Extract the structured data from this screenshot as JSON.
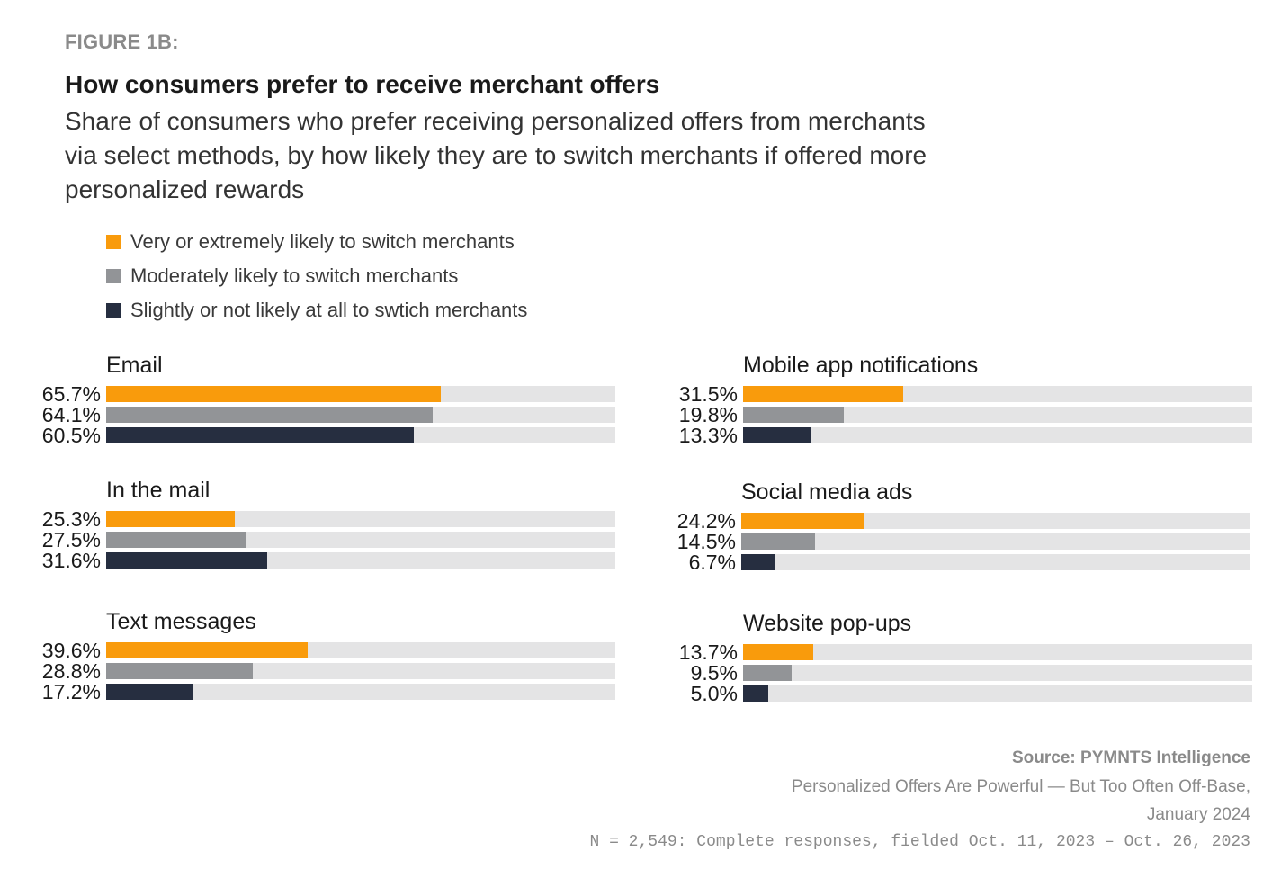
{
  "header": {
    "figure_label": "FIGURE 1B:",
    "title": "How consumers prefer to receive merchant offers",
    "subtitle": "Share of consumers who prefer receiving personalized offers from merchants via select methods, by how likely they are to switch merchants if offered more personalized rewards"
  },
  "legend": {
    "items": [
      {
        "label": "Very or extremely likely to switch merchants",
        "color": "#f99b0c"
      },
      {
        "label": "Moderately likely to switch merchants",
        "color": "#929497"
      },
      {
        "label": "Slightly or not likely at all to swtich merchants",
        "color": "#262e40"
      }
    ]
  },
  "chart_data": {
    "type": "bar",
    "series": [
      {
        "name": "Very or extremely likely to switch merchants",
        "color": "#f99b0c"
      },
      {
        "name": "Moderately likely to switch merchants",
        "color": "#929497"
      },
      {
        "name": "Slightly or not likely at all to swtich merchants",
        "color": "#262e40"
      }
    ],
    "xlim": [
      0,
      100
    ],
    "categories": [
      {
        "name": "Email",
        "values": [
          65.7,
          64.1,
          60.5
        ],
        "labels": [
          "65.7%",
          "64.1%",
          "60.5%"
        ]
      },
      {
        "name": "In the mail",
        "values": [
          25.3,
          27.5,
          31.6
        ],
        "labels": [
          "25.3%",
          "27.5%",
          "31.6%"
        ]
      },
      {
        "name": "Text messages",
        "values": [
          39.6,
          28.8,
          17.2
        ],
        "labels": [
          "39.6%",
          "28.8%",
          "17.2%"
        ]
      },
      {
        "name": "Mobile app notifications",
        "values": [
          31.5,
          19.8,
          13.3
        ],
        "labels": [
          "31.5%",
          "19.8%",
          "13.3%"
        ]
      },
      {
        "name": "Social media ads",
        "values": [
          24.2,
          14.5,
          6.7
        ],
        "labels": [
          "24.2%",
          "14.5%",
          "6.7%"
        ]
      },
      {
        "name": "Website pop-ups",
        "values": [
          13.7,
          9.5,
          5.0
        ],
        "labels": [
          "13.7%",
          "9.5%",
          "5.0%"
        ]
      }
    ]
  },
  "source": {
    "label": "Source: PYMNTS Intelligence",
    "line1": "Personalized Offers Are Powerful — But Too Often Off-Base,",
    "line2": "January 2024",
    "line3": "N = 2,549: Complete responses, fielded Oct. 11, 2023 – Oct. 26, 2023"
  }
}
